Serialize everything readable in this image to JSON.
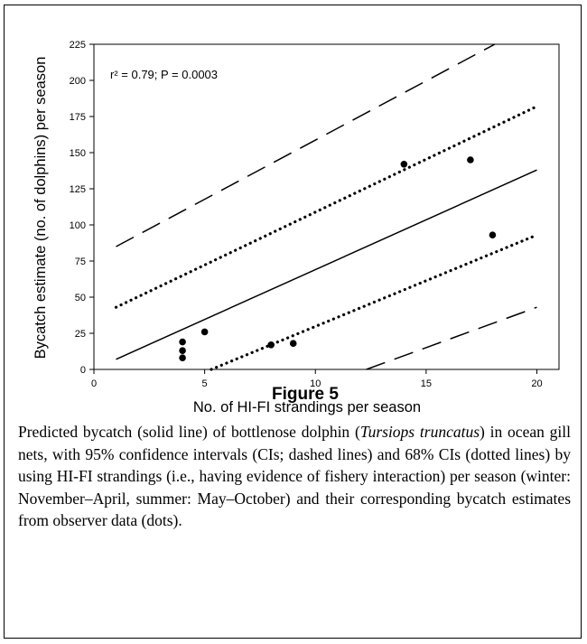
{
  "chart_data": {
    "type": "scatter",
    "x_label": "No. of HI-FI strandings per season",
    "y_label": "Bycatch estimate (no. of dolphins) per season",
    "annotation": "r² = 0.79; P = 0.0003",
    "xlim": [
      0,
      21
    ],
    "ylim": [
      0,
      225
    ],
    "xticks": [
      0,
      5,
      10,
      15,
      20
    ],
    "yticks": [
      0,
      25,
      50,
      75,
      100,
      125,
      150,
      175,
      200,
      225
    ],
    "points": {
      "color": "#000000",
      "x": [
        4,
        4,
        4,
        5,
        8,
        9,
        14,
        17,
        18
      ],
      "values": [
        8,
        13,
        19,
        26,
        17,
        18,
        142,
        145,
        93
      ]
    },
    "lines": [
      {
        "style": "solid",
        "x": [
          1,
          20
        ],
        "values": [
          7,
          138
        ]
      },
      {
        "style": "dotted",
        "x": [
          1,
          20
        ],
        "values": [
          43,
          182
        ]
      },
      {
        "style": "dotted",
        "x": [
          5.3,
          20
        ],
        "values": [
          0,
          93
        ]
      },
      {
        "style": "dashed",
        "x": [
          1,
          18.1
        ],
        "values": [
          85,
          225
        ]
      },
      {
        "style": "dashed",
        "x": [
          12.3,
          20
        ],
        "values": [
          0,
          43
        ]
      }
    ]
  },
  "figure": {
    "label": "Figure 5",
    "caption": [
      "Predicted bycatch (solid line) of bottlenose dolphin (",
      "Tursiops truncatus",
      ") in ocean gill nets, with 95% confidence intervals (CIs; dashed lines) and 68% CIs (dotted lines) by using HI-FI strandings (i.e., having evidence of fishery interaction) per season (winter: November–April, summer: May–October) and their corresponding bycatch estimates from observer data (dots)."
    ]
  }
}
